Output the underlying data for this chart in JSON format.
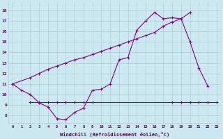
{
  "xlabel": "Windchill (Refroidissement éolien,°C)",
  "bg_color": "#cce8f0",
  "line_color": "#800080",
  "grid_color": "#aaccd8",
  "line1_x": [
    0,
    1,
    2,
    3,
    4,
    5,
    6,
    7,
    8,
    9,
    10,
    11,
    12,
    13,
    14,
    15,
    16,
    17,
    18,
    19,
    20,
    21,
    22
  ],
  "line1_y": [
    11.0,
    10.4,
    10.0,
    9.2,
    8.8,
    7.7,
    7.6,
    8.3,
    8.7,
    10.4,
    10.5,
    11.0,
    13.3,
    13.5,
    16.1,
    17.0,
    17.8,
    17.2,
    17.3,
    17.2,
    15.0,
    12.5,
    10.8
  ],
  "line2_x": [
    0,
    2,
    3,
    4,
    5,
    6,
    7,
    8,
    9,
    10,
    11,
    12,
    13,
    14,
    15,
    16,
    17,
    18,
    19,
    20
  ],
  "line2_y": [
    11.0,
    11.6,
    12.0,
    12.4,
    12.7,
    13.0,
    13.3,
    13.5,
    13.8,
    14.1,
    14.4,
    14.7,
    15.0,
    15.3,
    15.6,
    15.9,
    16.5,
    16.9,
    17.2,
    17.8
  ],
  "line3_x": [
    2,
    3,
    4,
    5,
    6,
    7,
    8,
    9,
    18,
    19,
    20,
    21,
    22,
    23
  ],
  "line3_y": [
    9.3,
    9.3,
    9.3,
    9.3,
    9.3,
    9.3,
    9.3,
    9.3,
    9.3,
    9.3,
    9.3,
    9.3,
    9.3,
    9.3
  ],
  "ylim": [
    7.2,
    18.8
  ],
  "xlim": [
    -0.5,
    23.5
  ],
  "yticks": [
    8,
    9,
    10,
    11,
    12,
    13,
    14,
    15,
    16,
    17,
    18
  ],
  "xticks": [
    0,
    1,
    2,
    3,
    4,
    5,
    6,
    7,
    8,
    9,
    10,
    11,
    12,
    13,
    14,
    15,
    16,
    17,
    18,
    19,
    20,
    21,
    22,
    23
  ]
}
